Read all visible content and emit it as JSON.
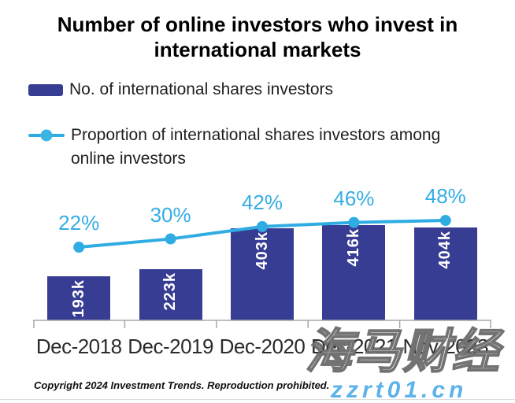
{
  "title": {
    "line1": "Number of online investors who invest in",
    "line2": "international markets"
  },
  "legend": {
    "bar_label": "No. of international shares investors",
    "line_label": "Proportion of international shares investors among online investors"
  },
  "chart_data": {
    "type": "bar",
    "title": "Number of online investors who invest in international markets",
    "categories": [
      "Dec-2018",
      "Dec-2019",
      "Dec-2020",
      "Dec-2021",
      "Nov-2023"
    ],
    "series": [
      {
        "name": "No. of international shares investors",
        "type": "bar",
        "values": [
          193,
          223,
          403,
          416,
          404
        ],
        "unit": "k",
        "labels": [
          "193k",
          "223k",
          "403k",
          "416k",
          "404k"
        ]
      },
      {
        "name": "Proportion of international shares investors among online investors",
        "type": "line",
        "values": [
          22,
          30,
          42,
          46,
          48
        ],
        "unit": "%",
        "labels": [
          "22%",
          "30%",
          "42%",
          "46%",
          "48%"
        ]
      }
    ],
    "value_labels_shown": true,
    "grid": false,
    "legend_position": "top-left",
    "y_axis_shown": false
  },
  "footer": {
    "copyright": "Copyright 2024 Investment Trends. Reproduction prohibited."
  },
  "watermarks": {
    "cn_text": "海马财经",
    "site_text": "zzrt01.cn"
  },
  "colors": {
    "bar": "#383d94",
    "line": "#2fade3",
    "line_dot": "#3cb4e6",
    "percent_label": "#35ade3",
    "bar_value_label": "#ffffff",
    "axis": "#a8a8a8",
    "x_label": "#2b2b2b",
    "title": "#000000",
    "watermark_site": "#5db3ea"
  }
}
